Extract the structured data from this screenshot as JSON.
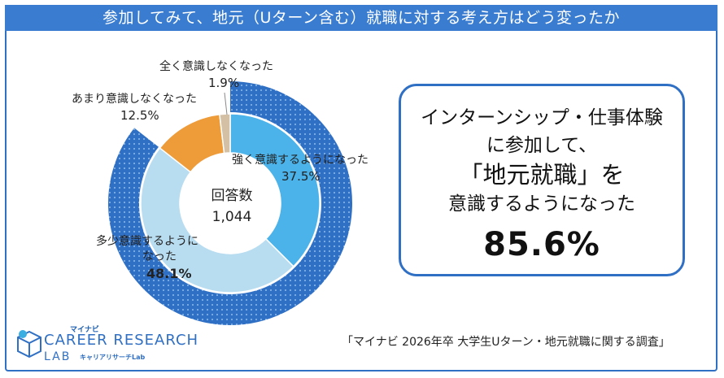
{
  "title": "参加してみて、地元（Uターン含む）就職に対する考え方はどう変ったか",
  "chart_data": {
    "type": "pie",
    "categories": [
      "強く意識するようになった",
      "多少意識するようになった",
      "あまり意識しなくなった",
      "全く意識しなくなった"
    ],
    "values": [
      37.5,
      48.1,
      12.5,
      1.9
    ],
    "value_labels": [
      "37.5%",
      "48.1%",
      "12.5%",
      "1.9%"
    ],
    "colors": [
      "#4bb2ea",
      "#b8dcf0",
      "#ee9b3a",
      "#d4c0a4"
    ],
    "outer_ring": {
      "value": 85.6,
      "color": "#2f6fc4"
    },
    "center_label": "回答数",
    "center_value": "1,044"
  },
  "labels": {
    "strong": "強く意識するようになった",
    "some_line1": "多少意識するように",
    "some_line2": "なった",
    "little": "あまり意識しなくなった",
    "none": "全く意識しなくなった"
  },
  "callout": {
    "line1": "インターンシップ・仕事体験",
    "line2": "に参加して、",
    "line3": "「地元就職」を",
    "line4": "意識するようになった",
    "value": "85.6%"
  },
  "source": "「マイナビ 2026年卒 大学生Uターン・地元就職に関する調査」",
  "logo": {
    "top": "マイナビ",
    "main": "CAREER RESEARCH",
    "lab": "LAB",
    "sub": "キャリアリサーチLab"
  }
}
